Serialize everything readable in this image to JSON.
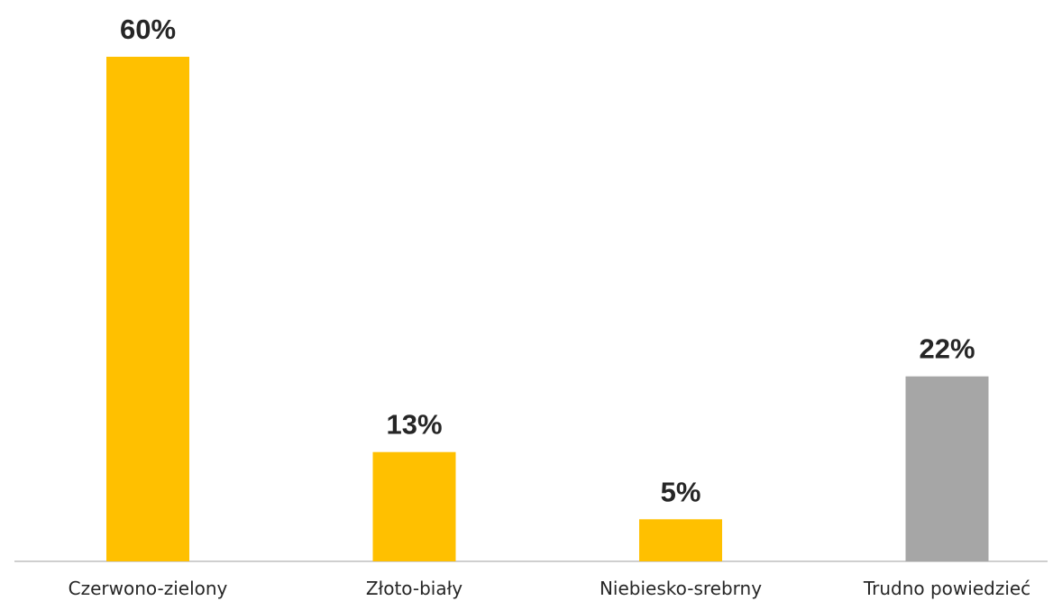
{
  "chart_data": {
    "type": "bar",
    "categories": [
      "Czerwono-zielony",
      "Złoto-biały",
      "Niebiesko-srebrny",
      "Trudno powiedzieć"
    ],
    "values": [
      60,
      13,
      5,
      22
    ],
    "value_labels": [
      "60%",
      "13%",
      "5%",
      "22%"
    ],
    "unit": "%",
    "ylim": [
      0,
      60
    ],
    "colors": [
      "#FFC000",
      "#FFC000",
      "#FFC000",
      "#A6A6A6"
    ],
    "axis_color": "#BFBFBF",
    "grid": false,
    "legend": "none"
  }
}
